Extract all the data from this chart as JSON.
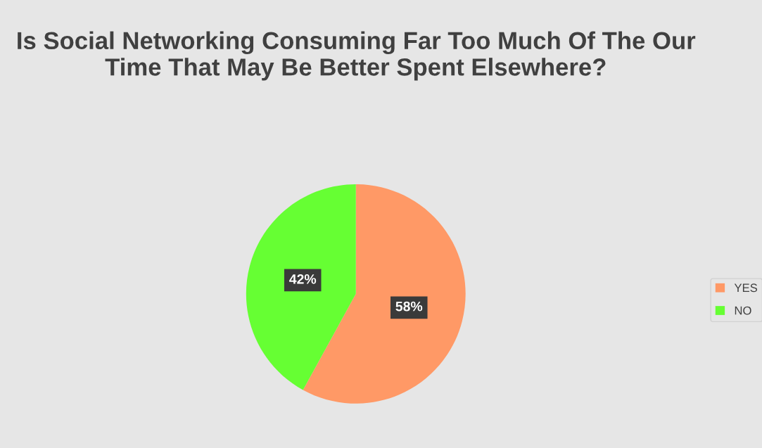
{
  "chart_data": {
    "type": "pie",
    "title": "Is Social Networking Consuming Far Too Much Of The Our Time That May Be Better Spent Elsewhere?",
    "categories": [
      "YES",
      "NO"
    ],
    "values": [
      58,
      42
    ],
    "colors": [
      "#ff9966",
      "#66ff33"
    ],
    "value_labels": [
      "58%",
      "42%"
    ],
    "legend": "right"
  }
}
